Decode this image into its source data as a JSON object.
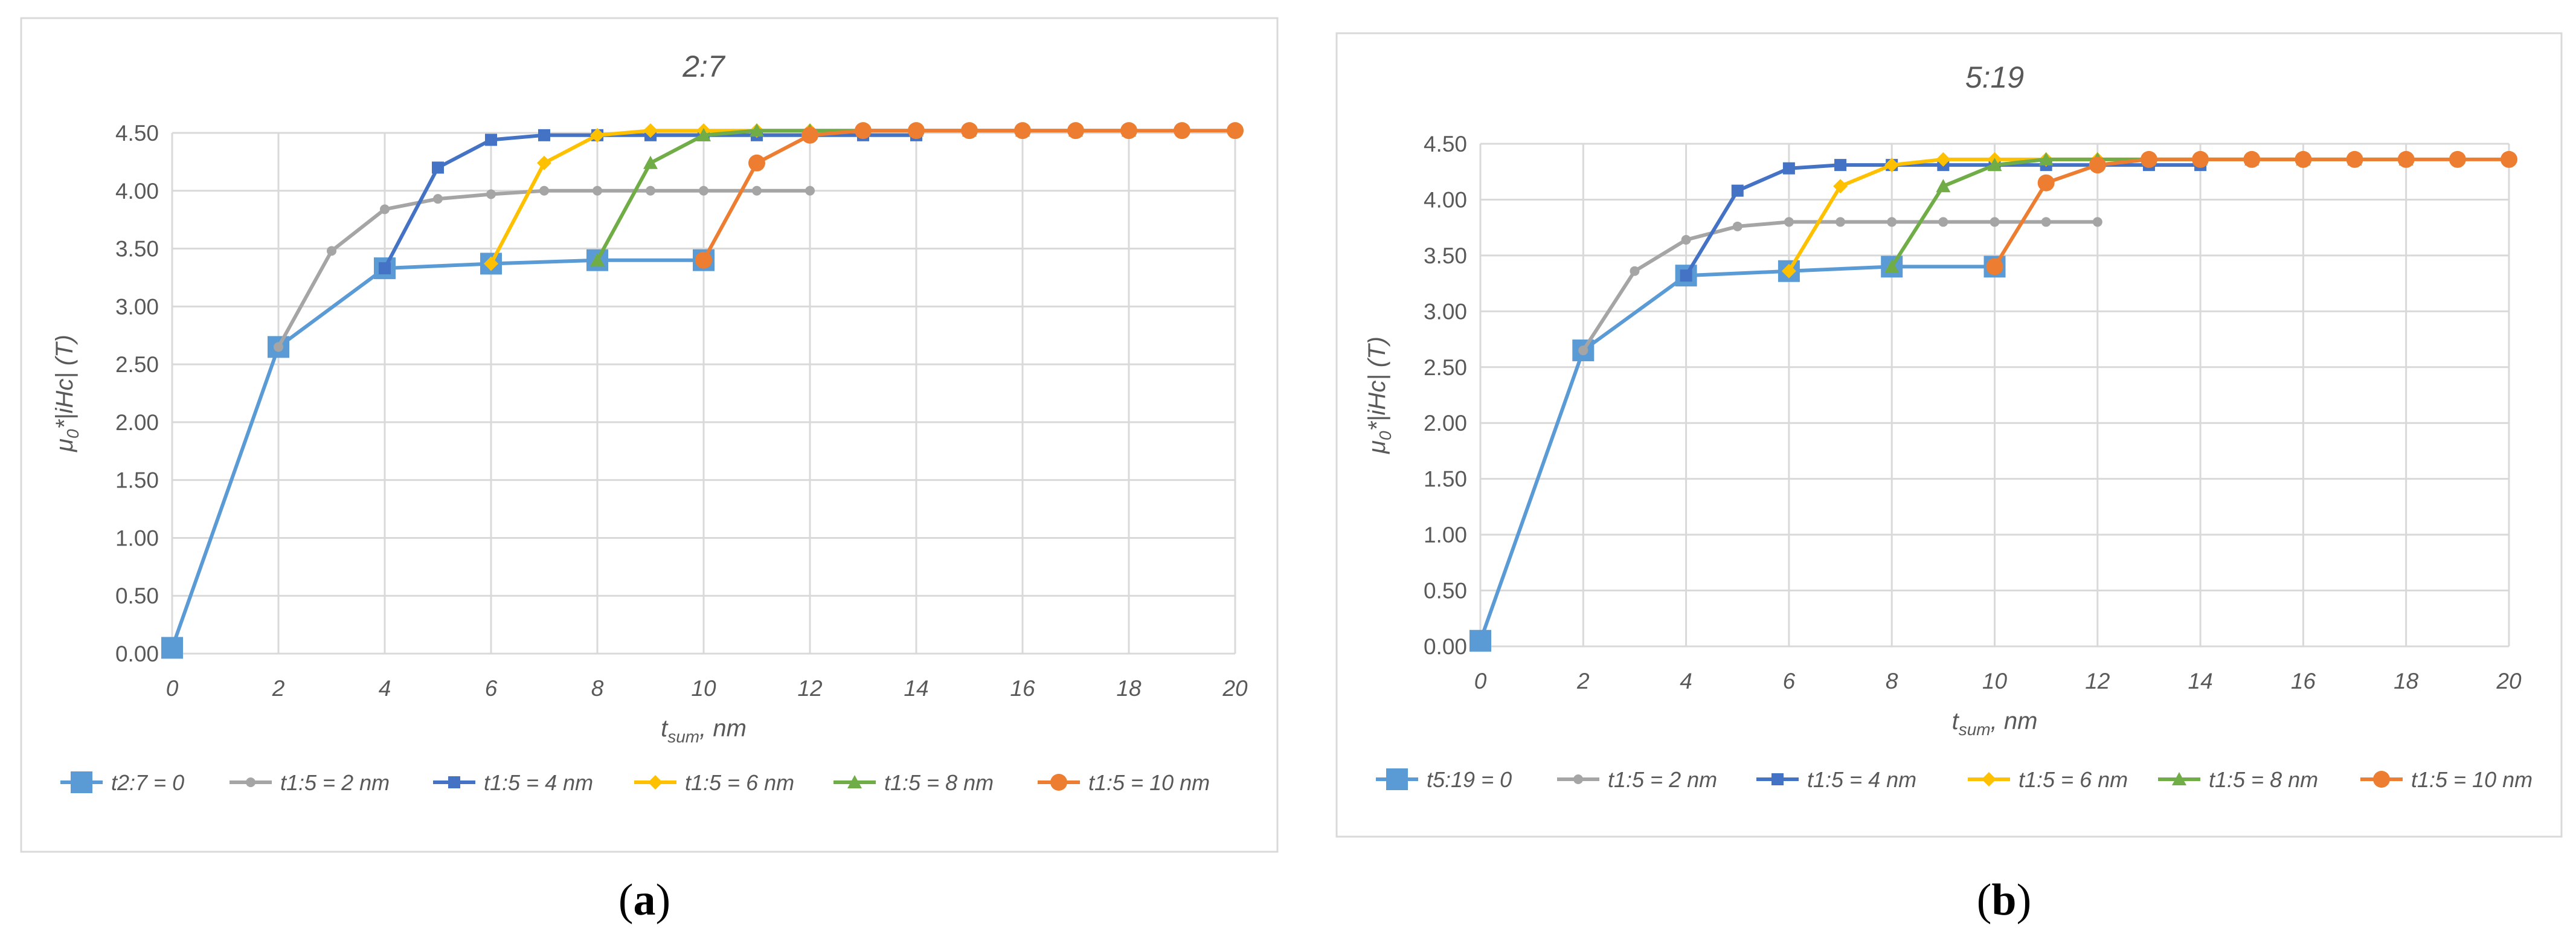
{
  "chart_data": [
    {
      "type": "line",
      "title": "2:7",
      "xlabel_main": "t",
      "xlabel_sub": "sum",
      "xlabel_rest": ", nm",
      "ylabel_pre": "μ",
      "ylabel_sub": "0",
      "ylabel_rest": "*|iHc| (T)",
      "xlim": [
        0,
        20
      ],
      "ylim": [
        0,
        4.5
      ],
      "xticks": [
        "0",
        "2",
        "4",
        "6",
        "8",
        "10",
        "12",
        "14",
        "16",
        "18",
        "20"
      ],
      "yticks": [
        "0.00",
        "0.50",
        "1.00",
        "1.50",
        "2.00",
        "2.50",
        "3.00",
        "3.50",
        "4.00",
        "4.50"
      ],
      "grid": "on",
      "legend": "bottom",
      "sub_label_open": "(",
      "sub_label": "a",
      "sub_label_close": ")",
      "series": [
        {
          "name": "t2:7 = 0",
          "color": "#5b9bd5",
          "marker": "square-large",
          "points": [
            [
              0,
              0.05
            ],
            [
              2,
              2.65
            ],
            [
              4,
              3.33
            ],
            [
              6,
              3.37
            ],
            [
              8,
              3.4
            ],
            [
              10,
              3.4
            ]
          ]
        },
        {
          "name": "t1:5 = 2 nm",
          "color": "#a5a5a5",
          "marker": "circle-small",
          "points": [
            [
              2,
              2.65
            ],
            [
              3,
              3.48
            ],
            [
              4,
              3.84
            ],
            [
              5,
              3.93
            ],
            [
              6,
              3.97
            ],
            [
              7,
              4.0
            ],
            [
              8,
              4.0
            ],
            [
              9,
              4.0
            ],
            [
              10,
              4.0
            ],
            [
              11,
              4.0
            ],
            [
              12,
              4.0
            ]
          ]
        },
        {
          "name": "t1:5 = 4 nm",
          "color": "#4472c4",
          "marker": "square-small",
          "points": [
            [
              4,
              3.33
            ],
            [
              5,
              4.2
            ],
            [
              6,
              4.44
            ],
            [
              7,
              4.48
            ],
            [
              8,
              4.48
            ],
            [
              9,
              4.48
            ],
            [
              10,
              4.48
            ],
            [
              11,
              4.48
            ],
            [
              12,
              4.48
            ],
            [
              13,
              4.48
            ],
            [
              14,
              4.48
            ]
          ]
        },
        {
          "name": "t1:5 = 6 nm",
          "color": "#ffc000",
          "marker": "diamond",
          "points": [
            [
              6,
              3.37
            ],
            [
              7,
              4.24
            ],
            [
              8,
              4.48
            ],
            [
              9,
              4.52
            ],
            [
              10,
              4.52
            ],
            [
              11,
              4.52
            ],
            [
              12,
              4.52
            ],
            [
              13,
              4.52
            ],
            [
              14,
              4.52
            ],
            [
              15,
              4.52
            ],
            [
              16,
              4.52
            ]
          ]
        },
        {
          "name": "t1:5 = 8 nm",
          "color": "#70ad47",
          "marker": "triangle",
          "points": [
            [
              8,
              3.4
            ],
            [
              9,
              4.24
            ],
            [
              10,
              4.48
            ],
            [
              11,
              4.52
            ],
            [
              12,
              4.52
            ],
            [
              13,
              4.52
            ],
            [
              14,
              4.52
            ],
            [
              15,
              4.52
            ],
            [
              16,
              4.52
            ],
            [
              17,
              4.52
            ],
            [
              18,
              4.52
            ]
          ]
        },
        {
          "name": "t1:5 = 10 nm",
          "color": "#ed7d31",
          "marker": "circle-large",
          "points": [
            [
              10,
              3.4
            ],
            [
              11,
              4.24
            ],
            [
              12,
              4.48
            ],
            [
              13,
              4.52
            ],
            [
              14,
              4.52
            ],
            [
              15,
              4.52
            ],
            [
              16,
              4.52
            ],
            [
              17,
              4.52
            ],
            [
              18,
              4.52
            ],
            [
              19,
              4.52
            ],
            [
              20,
              4.52
            ]
          ]
        }
      ]
    },
    {
      "type": "line",
      "title": "5:19",
      "xlabel_main": "t",
      "xlabel_sub": "sum",
      "xlabel_rest": ", nm",
      "ylabel_pre": "μ",
      "ylabel_sub": "0",
      "ylabel_rest": "*|iHc| (T)",
      "xlim": [
        0,
        20
      ],
      "ylim": [
        0,
        4.5
      ],
      "xticks": [
        "0",
        "2",
        "4",
        "6",
        "8",
        "10",
        "12",
        "14",
        "16",
        "18",
        "20"
      ],
      "yticks": [
        "0.00",
        "0.50",
        "1.00",
        "1.50",
        "2.00",
        "2.50",
        "3.00",
        "3.50",
        "4.00",
        "4.50"
      ],
      "grid": "on",
      "legend": "bottom",
      "sub_label_open": "(",
      "sub_label": "b",
      "sub_label_close": ")",
      "series": [
        {
          "name": "t5:19 = 0",
          "color": "#5b9bd5",
          "marker": "square-large",
          "points": [
            [
              0,
              0.05
            ],
            [
              2,
              2.65
            ],
            [
              4,
              3.32
            ],
            [
              6,
              3.36
            ],
            [
              8,
              3.4
            ],
            [
              10,
              3.4
            ]
          ]
        },
        {
          "name": "t1:5 = 2 nm",
          "color": "#a5a5a5",
          "marker": "circle-small",
          "points": [
            [
              2,
              2.65
            ],
            [
              3,
              3.36
            ],
            [
              4,
              3.64
            ],
            [
              5,
              3.76
            ],
            [
              6,
              3.8
            ],
            [
              7,
              3.8
            ],
            [
              8,
              3.8
            ],
            [
              9,
              3.8
            ],
            [
              10,
              3.8
            ],
            [
              11,
              3.8
            ],
            [
              12,
              3.8
            ]
          ]
        },
        {
          "name": "t1:5 = 4 nm",
          "color": "#4472c4",
          "marker": "square-small",
          "points": [
            [
              4,
              3.32
            ],
            [
              5,
              4.08
            ],
            [
              6,
              4.28
            ],
            [
              7,
              4.31
            ],
            [
              8,
              4.31
            ],
            [
              9,
              4.31
            ],
            [
              10,
              4.31
            ],
            [
              11,
              4.31
            ],
            [
              12,
              4.31
            ],
            [
              13,
              4.31
            ],
            [
              14,
              4.31
            ]
          ]
        },
        {
          "name": "t1:5 = 6 nm",
          "color": "#ffc000",
          "marker": "diamond",
          "points": [
            [
              6,
              3.36
            ],
            [
              7,
              4.12
            ],
            [
              8,
              4.31
            ],
            [
              9,
              4.36
            ],
            [
              10,
              4.36
            ],
            [
              11,
              4.36
            ],
            [
              12,
              4.36
            ],
            [
              13,
              4.36
            ],
            [
              14,
              4.36
            ],
            [
              15,
              4.36
            ],
            [
              16,
              4.36
            ]
          ]
        },
        {
          "name": "t1:5 = 8 nm",
          "color": "#70ad47",
          "marker": "triangle",
          "points": [
            [
              8,
              3.4
            ],
            [
              9,
              4.12
            ],
            [
              10,
              4.31
            ],
            [
              11,
              4.36
            ],
            [
              12,
              4.36
            ],
            [
              13,
              4.36
            ],
            [
              14,
              4.36
            ],
            [
              15,
              4.36
            ],
            [
              16,
              4.36
            ],
            [
              17,
              4.36
            ],
            [
              18,
              4.36
            ]
          ]
        },
        {
          "name": "t1:5 = 10 nm",
          "color": "#ed7d31",
          "marker": "circle-large",
          "points": [
            [
              10,
              3.4
            ],
            [
              11,
              4.15
            ],
            [
              12,
              4.31
            ],
            [
              13,
              4.36
            ],
            [
              14,
              4.36
            ],
            [
              15,
              4.36
            ],
            [
              16,
              4.36
            ],
            [
              17,
              4.36
            ],
            [
              18,
              4.36
            ],
            [
              19,
              4.36
            ],
            [
              20,
              4.36
            ]
          ]
        }
      ]
    }
  ]
}
